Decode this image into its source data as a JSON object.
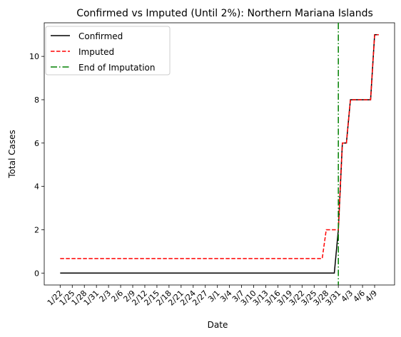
{
  "chart_data": {
    "type": "line",
    "title": "Confirmed vs Imputed (Until 2%): Northern Mariana Islands",
    "xlabel": "Date",
    "ylabel": "Total Cases",
    "x_tick_labels": [
      "1/22",
      "1/25",
      "1/28",
      "1/31",
      "2/3",
      "2/6",
      "2/9",
      "2/12",
      "2/15",
      "2/18",
      "2/21",
      "2/24",
      "2/27",
      "3/1",
      "3/4",
      "3/7",
      "3/10",
      "3/13",
      "3/16",
      "3/19",
      "3/22",
      "3/25",
      "3/28",
      "3/31",
      "4/3",
      "4/6",
      "4/9"
    ],
    "y_ticks": [
      0,
      2,
      4,
      6,
      8,
      10
    ],
    "ylim": [
      -0.55,
      11.55
    ],
    "legend_position": "top-left",
    "end_of_imputation_label": "End of Imputation",
    "end_of_imputation_date": "3/31",
    "series": [
      {
        "name": "Confirmed",
        "color": "#000000",
        "style": "solid",
        "x": [
          "1/22",
          "3/30",
          "3/31",
          "4/1",
          "4/2",
          "4/3",
          "4/8",
          "4/9",
          "4/10"
        ],
        "y": [
          0,
          0,
          2,
          6,
          6,
          8,
          8,
          11,
          11
        ]
      },
      {
        "name": "Imputed",
        "color": "#ff0000",
        "style": "dashed",
        "x": [
          "1/22",
          "3/27",
          "3/28",
          "3/30",
          "3/31",
          "4/1",
          "4/2",
          "4/3",
          "4/8",
          "4/9",
          "4/10"
        ],
        "y": [
          0.67,
          0.67,
          2,
          2,
          2,
          6,
          6,
          8,
          8,
          11,
          11
        ]
      }
    ],
    "vline_color": "#008000"
  }
}
